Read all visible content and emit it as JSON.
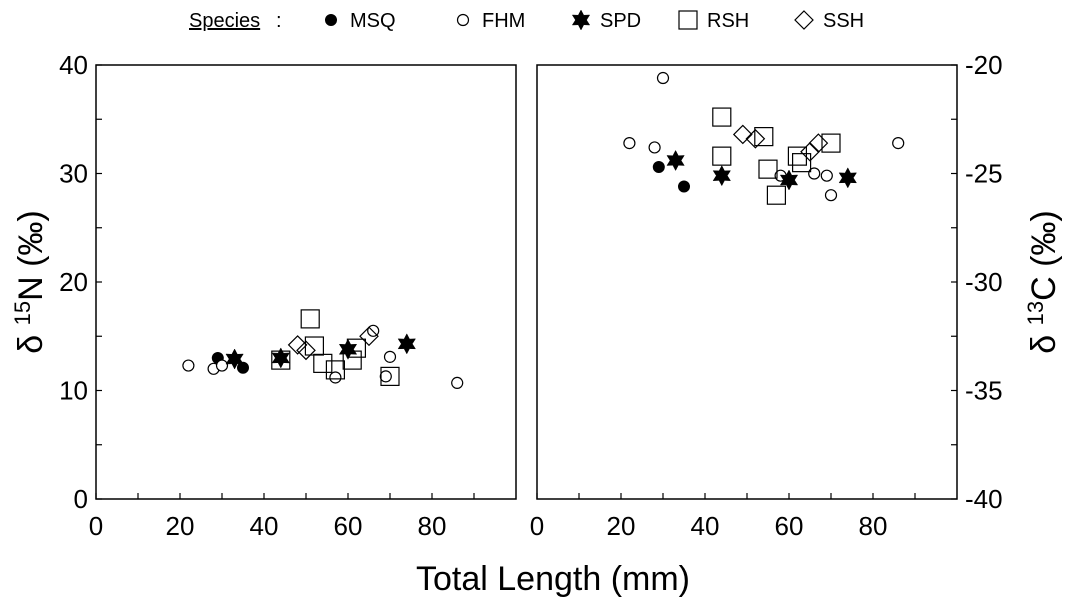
{
  "legend": {
    "title": "Species",
    "items": [
      {
        "code": "MSQ",
        "marker": "filled-circle"
      },
      {
        "code": "FHM",
        "marker": "open-circle"
      },
      {
        "code": "SPD",
        "marker": "filled-star"
      },
      {
        "code": "RSH",
        "marker": "open-square"
      },
      {
        "code": "SSH",
        "marker": "open-diamond"
      }
    ]
  },
  "xlabel": "Total Length (mm)",
  "chart_data": [
    {
      "type": "scatter",
      "panel": "left",
      "ylabel_prefix": "δ",
      "ylabel_sup": "15",
      "ylabel_suffix": "N (‰)",
      "xlim": [
        0,
        100
      ],
      "ylim": [
        0,
        40
      ],
      "xticks": [
        0,
        20,
        40,
        60,
        80
      ],
      "yticks": [
        0,
        10,
        20,
        30,
        40
      ],
      "series": [
        {
          "name": "MSQ",
          "points": [
            [
              29,
              13.0
            ],
            [
              35,
              12.1
            ]
          ]
        },
        {
          "name": "FHM",
          "points": [
            [
              22,
              12.3
            ],
            [
              28,
              12.0
            ],
            [
              30,
              12.3
            ],
            [
              57,
              11.2
            ],
            [
              69,
              11.3
            ],
            [
              70,
              13.1
            ],
            [
              66,
              15.5
            ],
            [
              86,
              10.7
            ]
          ]
        },
        {
          "name": "SPD",
          "points": [
            [
              33,
              12.9
            ],
            [
              44,
              13.0
            ],
            [
              60,
              13.8
            ],
            [
              74,
              14.3
            ]
          ]
        },
        {
          "name": "RSH",
          "points": [
            [
              44,
              12.8
            ],
            [
              51,
              16.6
            ],
            [
              52,
              14.1
            ],
            [
              54,
              12.5
            ],
            [
              57,
              11.9
            ],
            [
              61,
              12.8
            ],
            [
              62,
              13.9
            ],
            [
              70,
              11.3
            ]
          ]
        },
        {
          "name": "SSH",
          "points": [
            [
              48,
              14.2
            ],
            [
              50,
              13.7
            ],
            [
              65,
              15.0
            ]
          ]
        }
      ]
    },
    {
      "type": "scatter",
      "panel": "right",
      "ylabel_prefix": "δ",
      "ylabel_sup": "13",
      "ylabel_suffix": "C (‰)",
      "xlim": [
        0,
        100
      ],
      "ylim": [
        -40,
        -20
      ],
      "xticks": [
        0,
        20,
        40,
        60,
        80
      ],
      "yticks": [
        -40,
        -35,
        -30,
        -25,
        -20
      ],
      "series": [
        {
          "name": "MSQ",
          "points": [
            [
              29,
              -24.7
            ],
            [
              35,
              -25.6
            ]
          ]
        },
        {
          "name": "FHM",
          "points": [
            [
              22,
              -23.6
            ],
            [
              28,
              -23.8
            ],
            [
              30,
              -20.6
            ],
            [
              58,
              -25.1
            ],
            [
              66,
              -25.0
            ],
            [
              69,
              -25.1
            ],
            [
              70,
              -26.0
            ],
            [
              86,
              -23.6
            ]
          ]
        },
        {
          "name": "SPD",
          "points": [
            [
              33,
              -24.4
            ],
            [
              44,
              -25.1
            ],
            [
              60,
              -25.3
            ],
            [
              74,
              -25.2
            ]
          ]
        },
        {
          "name": "RSH",
          "points": [
            [
              44,
              -22.4
            ],
            [
              44,
              -24.2
            ],
            [
              54,
              -23.3
            ],
            [
              55,
              -24.8
            ],
            [
              57,
              -26.0
            ],
            [
              62,
              -24.2
            ],
            [
              63,
              -24.5
            ],
            [
              70,
              -23.6
            ]
          ]
        },
        {
          "name": "SSH",
          "points": [
            [
              49,
              -23.2
            ],
            [
              52,
              -23.4
            ],
            [
              65,
              -24.0
            ],
            [
              67,
              -23.6
            ]
          ]
        }
      ]
    }
  ]
}
